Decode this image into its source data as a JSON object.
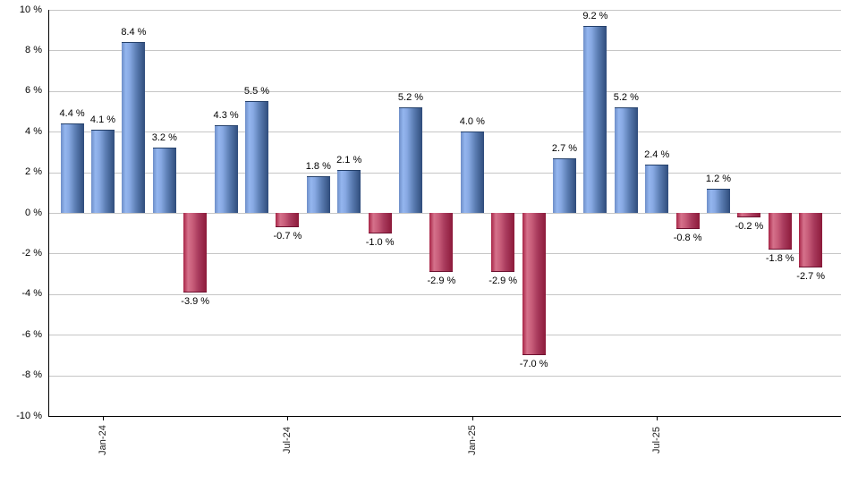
{
  "chart_data": {
    "type": "bar",
    "title": "",
    "unit": "%",
    "ylim": [
      -10,
      10
    ],
    "y_tick_step": 2,
    "grid": true,
    "legend": false,
    "values": [
      4.4,
      4.1,
      8.4,
      3.2,
      -3.9,
      4.3,
      5.5,
      -0.7,
      1.8,
      2.1,
      -1.0,
      5.2,
      -2.9,
      4.0,
      -2.9,
      -7.0,
      2.7,
      9.2,
      5.2,
      2.4,
      -0.8,
      1.2,
      -0.2,
      -1.8,
      -2.7
    ],
    "bar_value_labels": [
      "4.4 %",
      "4.1 %",
      "8.4 %",
      "3.2 %",
      "-3.9 %",
      "4.3 %",
      "5.5 %",
      "-0.7 %",
      "1.8 %",
      "2.1 %",
      "-1.0 %",
      "5.2 %",
      "-2.9 %",
      "4.0 %",
      "-2.9 %",
      "-7.0 %",
      "2.7 %",
      "9.2 %",
      "5.2 %",
      "2.4 %",
      "-0.8 %",
      "1.2 %",
      "-0.2 %",
      "-1.8 %",
      "-2.7 %"
    ],
    "y_tick_labels": [
      "10 %",
      "8 %",
      "6 %",
      "4 %",
      "2 %",
      "0 %",
      "-2 %",
      "-4 %",
      "-6 %",
      "-8 %",
      "-10 %"
    ],
    "x_ticks": [
      {
        "label": "Jan-24",
        "bar_index": 1
      },
      {
        "label": "Jul-24",
        "bar_index": 7
      },
      {
        "label": "Jan-25",
        "bar_index": 13
      },
      {
        "label": "Jul-25",
        "bar_index": 19
      }
    ],
    "colors": {
      "positive_bar_light": "#94b6ef",
      "positive_bar_dark": "#2f4c7b",
      "negative_bar_light": "#d5718b",
      "negative_bar_dark": "#8c1a3a",
      "gridline": "#c6c6c6",
      "axis": "#000000",
      "value_label": "#000000",
      "tick_label": "#222222",
      "background": "#ffffff"
    }
  }
}
